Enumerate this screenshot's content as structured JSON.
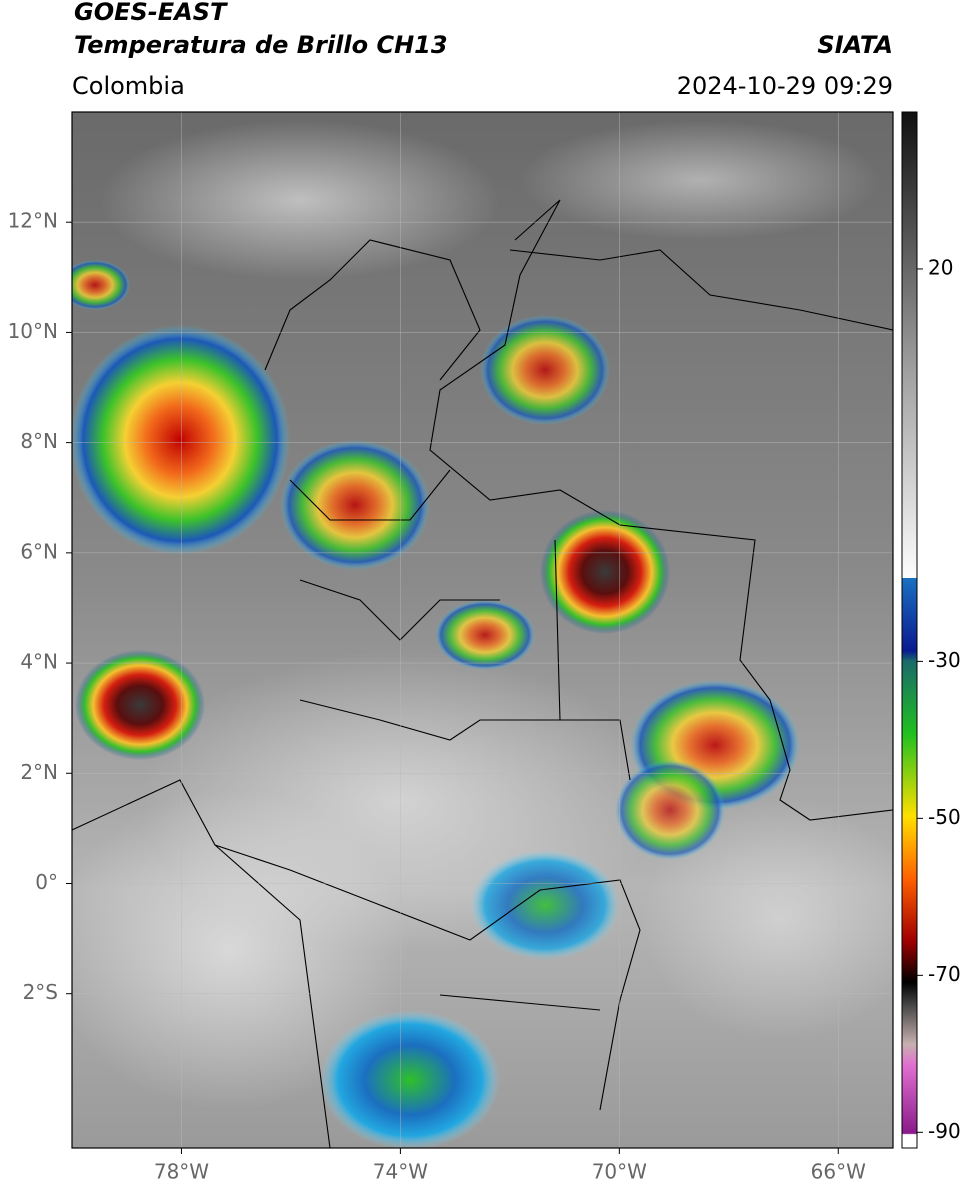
{
  "header": {
    "title_line1": "GOES-EAST",
    "title_line2": "Temperatura de Brillo CH13",
    "region": "Colombia",
    "source": "SIATA",
    "datetime": "2024-10-29 09:29"
  },
  "map": {
    "xlim": [
      -80,
      -65
    ],
    "ylim": [
      -4.8,
      14
    ],
    "lon_ticks": [
      {
        "value": -78,
        "label": "78°W"
      },
      {
        "value": -74,
        "label": "74°W"
      },
      {
        "value": -70,
        "label": "70°W"
      },
      {
        "value": -66,
        "label": "66°W"
      }
    ],
    "lat_ticks": [
      {
        "value": 12,
        "label": "12°N"
      },
      {
        "value": 10,
        "label": "10°N"
      },
      {
        "value": 8,
        "label": "8°N"
      },
      {
        "value": 6,
        "label": "6°N"
      },
      {
        "value": 4,
        "label": "4°N"
      },
      {
        "value": 2,
        "label": "2°N"
      },
      {
        "value": 0,
        "label": "0°"
      },
      {
        "value": -2,
        "label": "2°S"
      }
    ]
  },
  "colorbar": {
    "range": [
      -92,
      40
    ],
    "ticks": [
      20,
      -30,
      -50,
      -70,
      -90
    ]
  }
}
